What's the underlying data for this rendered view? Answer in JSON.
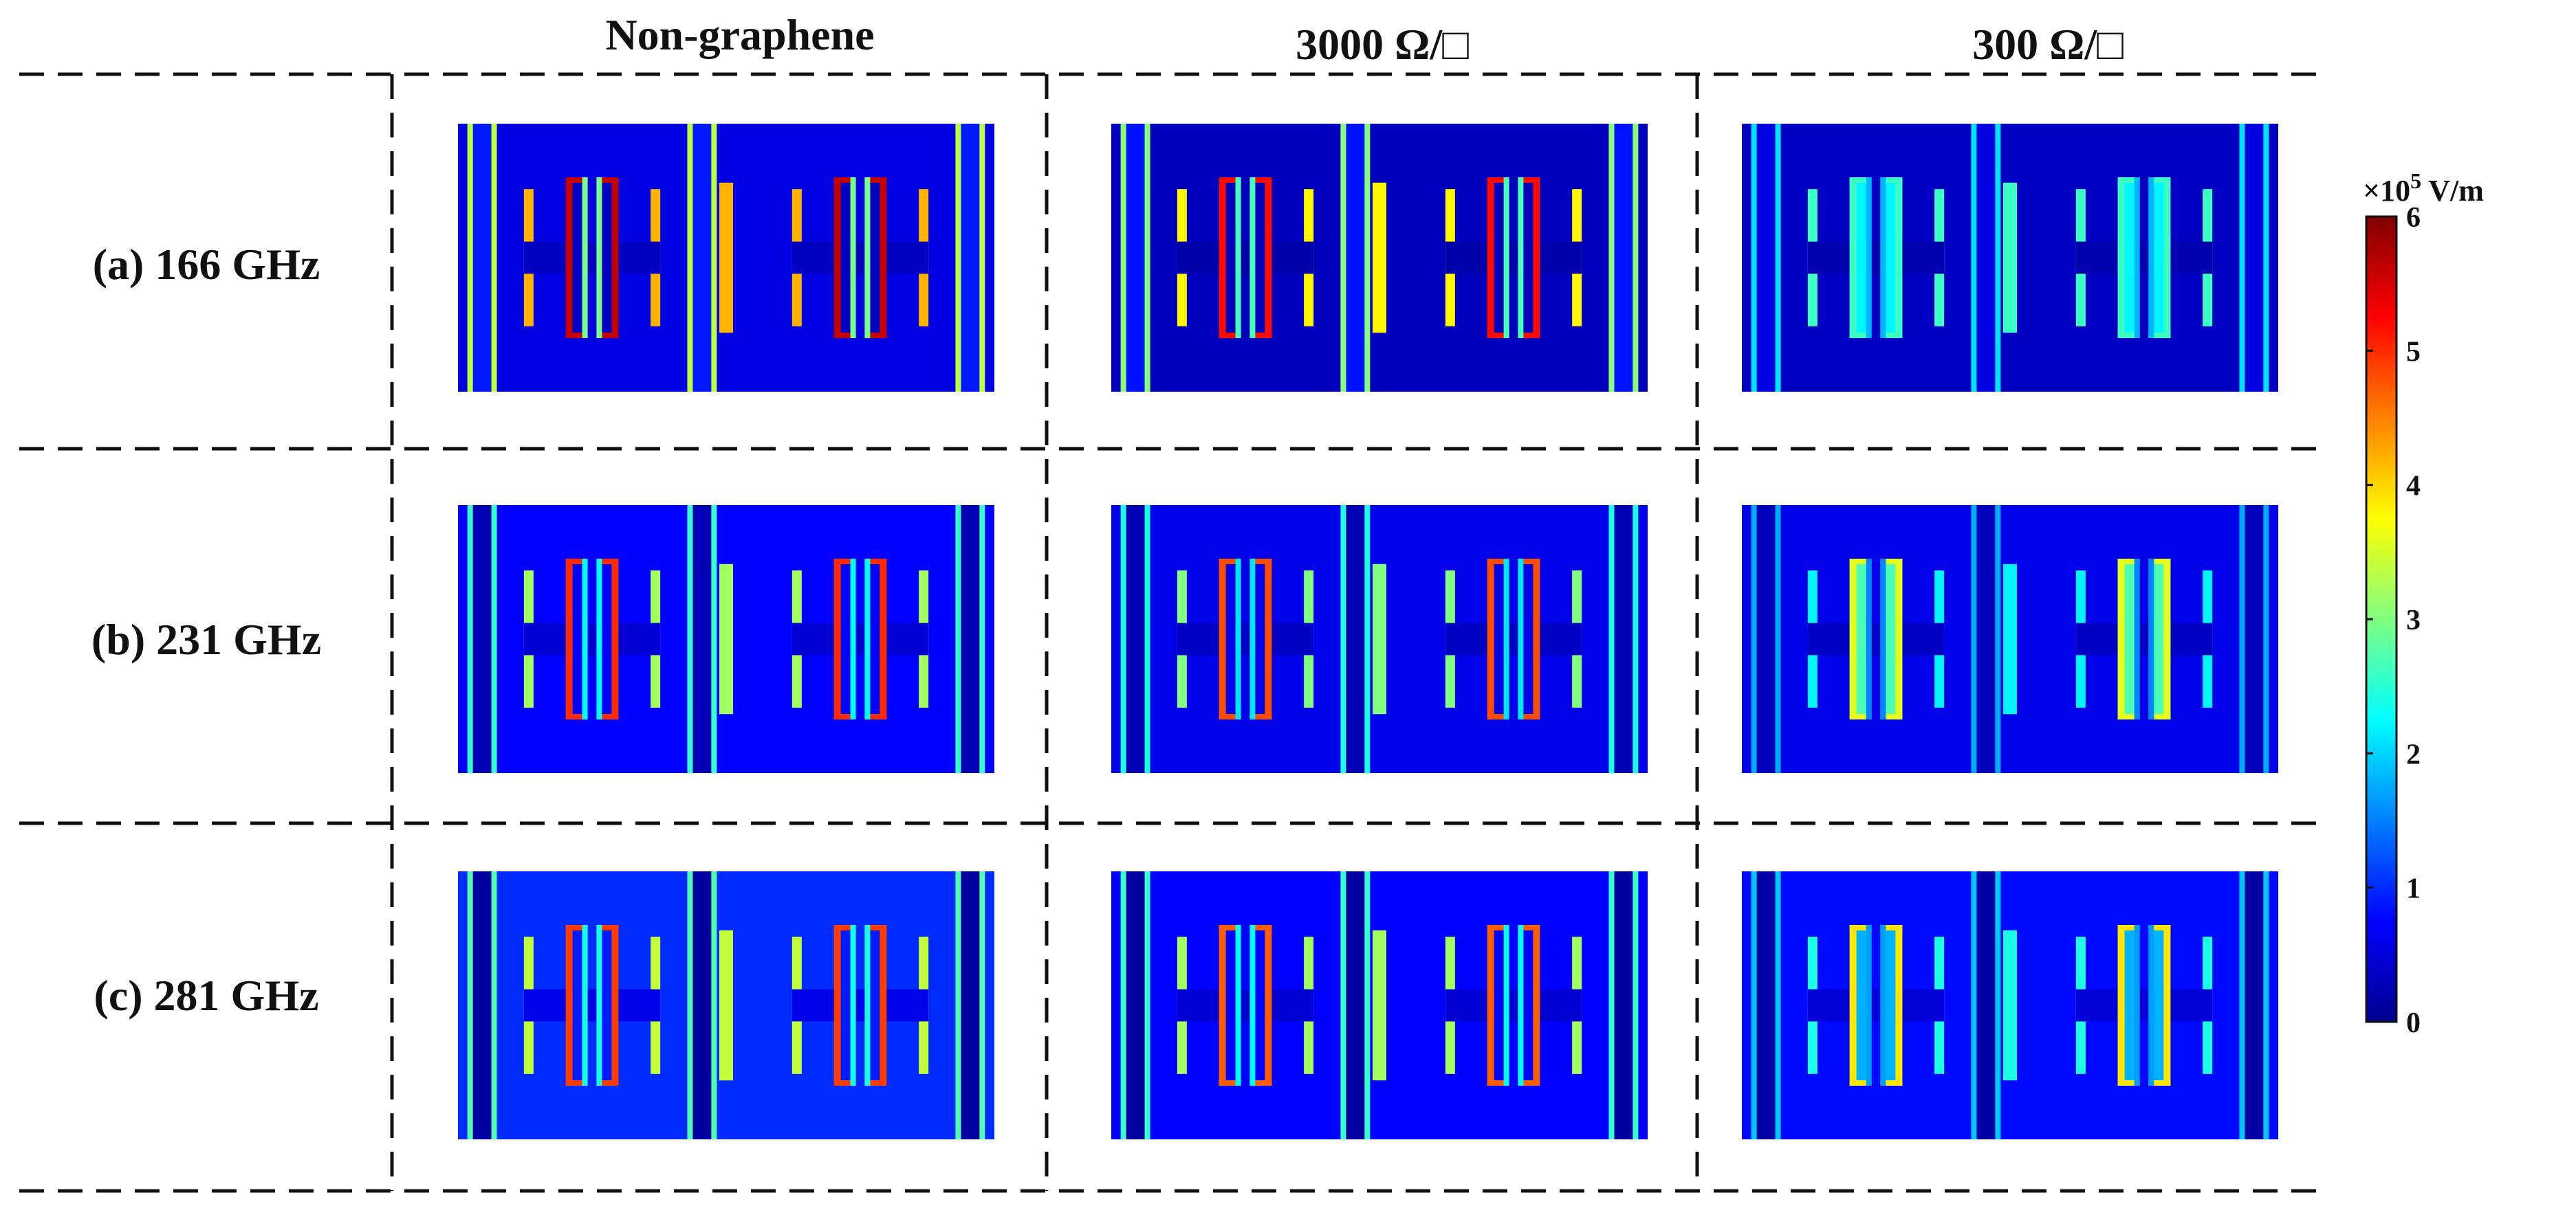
{
  "columns": [
    {
      "label": "Non-graphene"
    },
    {
      "label": "3000 Ω/□"
    },
    {
      "label": "300 Ω/□"
    }
  ],
  "rows": [
    {
      "label": "(a) 166 GHz"
    },
    {
      "label": "(b) 231 GHz"
    },
    {
      "label": "(c) 281 GHz"
    }
  ],
  "colorbar": {
    "unit_multiplier": "×10",
    "unit_exponent": "5",
    "unit": " V/m",
    "ticks": [
      "0",
      "1",
      "2",
      "3",
      "4",
      "5",
      "6"
    ],
    "range": [
      0,
      6
    ],
    "colormap": [
      "#00008f",
      "#0000ff",
      "#0080ff",
      "#00ffff",
      "#80ff80",
      "#ffff00",
      "#ff8000",
      "#ff0000",
      "#800000"
    ]
  },
  "panels": [
    [
      {
        "background": 0.55,
        "gap": 0.9,
        "edge": 4.2,
        "bar": 5.6,
        "inner_fill": 0.35
      },
      {
        "background": 0.3,
        "gap": 0.85,
        "edge": 3.8,
        "bar": 5.2,
        "inner_fill": 0.3
      },
      {
        "background": 0.35,
        "gap": 0.55,
        "edge": 2.6,
        "bar": 2.6,
        "inner_fill": 2.2
      }
    ],
    [
      {
        "background": 0.75,
        "gap": 0.25,
        "edge": 3.2,
        "bar": 5.0,
        "inner_fill": 0.7
      },
      {
        "background": 0.6,
        "gap": 0.25,
        "edge": 3.0,
        "bar": 4.8,
        "inner_fill": 0.6
      },
      {
        "background": 0.6,
        "gap": 0.3,
        "edge": 2.2,
        "bar": 3.6,
        "inner_fill": 2.7
      }
    ],
    [
      {
        "background": 1.0,
        "gap": 0.12,
        "edge": 3.4,
        "bar": 4.9,
        "inner_fill": 0.9
      },
      {
        "background": 0.75,
        "gap": 0.12,
        "edge": 3.2,
        "bar": 4.7,
        "inner_fill": 0.75
      },
      {
        "background": 0.8,
        "gap": 0.15,
        "edge": 2.4,
        "bar": 3.9,
        "inner_fill": 1.8
      }
    ]
  ]
}
